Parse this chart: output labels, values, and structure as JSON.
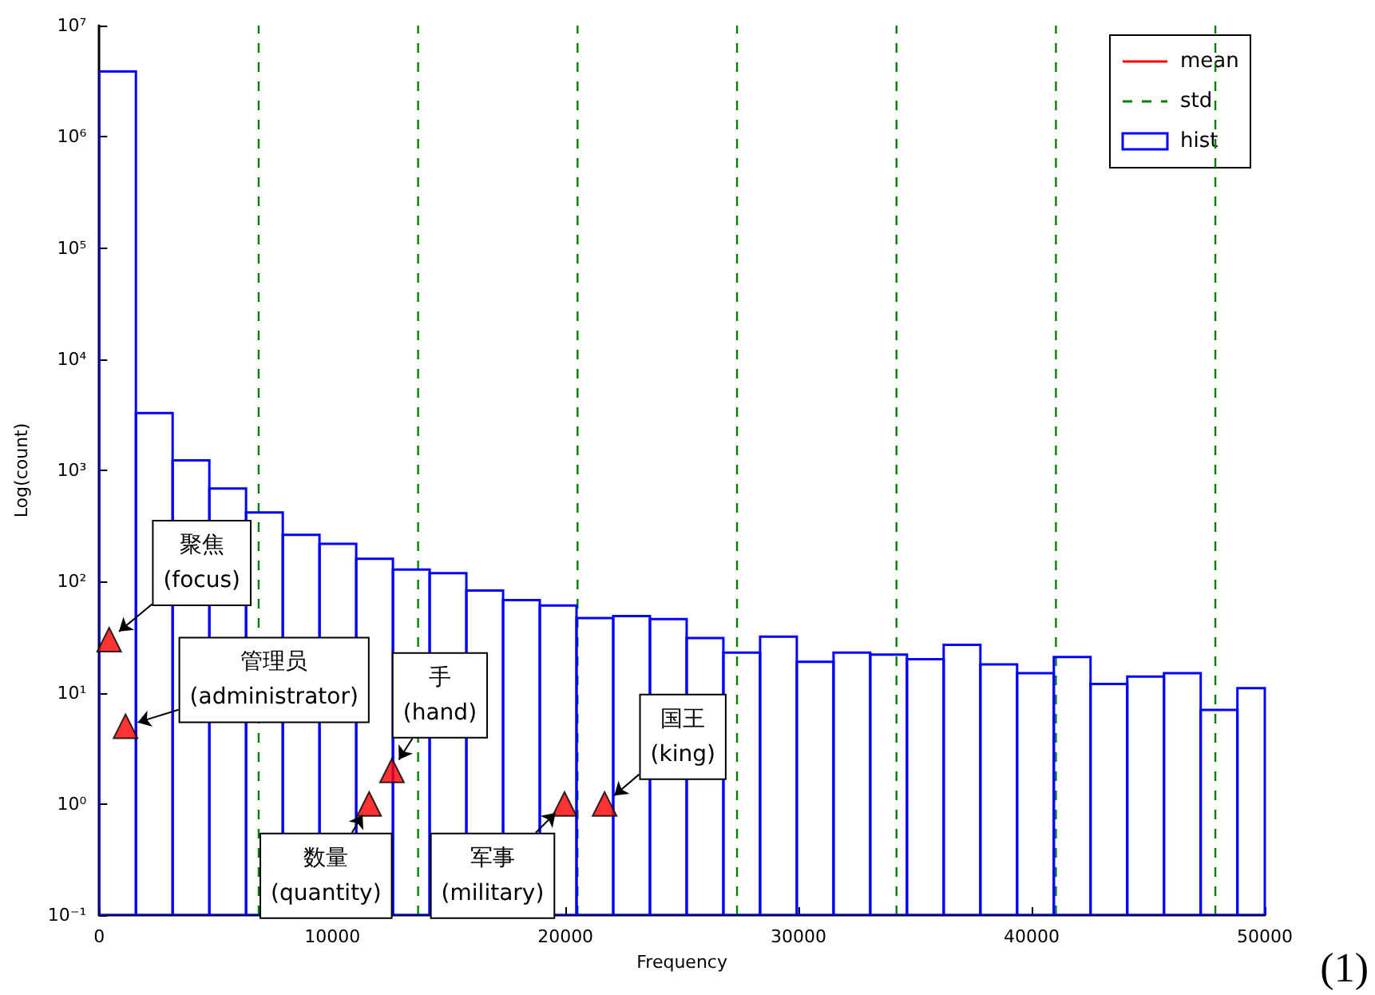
{
  "chart_data": {
    "type": "histogram",
    "xlabel": "Frequency",
    "ylabel": "Log(count)",
    "bins": [
      0,
      1575,
      3150,
      4725,
      6300,
      7875,
      9450,
      11025,
      12600,
      14175,
      15750,
      17325,
      18900,
      20475,
      22050,
      23625,
      25200,
      26775,
      28350,
      29925,
      31500,
      33075,
      34650,
      36225,
      37800,
      39375,
      40950,
      42525,
      44100,
      45675,
      47250,
      48825,
      50000
    ],
    "series": [
      {
        "name": "mean",
        "type": "line",
        "color": "#ff0000",
        "line_style": "solid",
        "values": [
          null
        ]
      },
      {
        "name": "std",
        "type": "line",
        "color": "#008000",
        "line_style": "dashed",
        "x": [
          6840,
          6840,
          null,
          13680,
          13680,
          null,
          20520,
          20520,
          null,
          27360,
          27360,
          null,
          34200,
          34200,
          null,
          41040,
          41040,
          null,
          47880,
          47880
        ],
        "values": [
          0.1,
          10000000,
          null,
          0.1,
          10000000,
          null,
          0.1,
          10000000,
          null,
          0.1,
          10000000,
          null,
          0.1,
          10000000,
          null,
          0.1,
          10000000,
          null,
          0.1,
          10000000
        ]
      },
      {
        "name": "hist",
        "color": "#0000ff",
        "values": [
          3860000,
          3280,
          1230,
          686,
          418,
          263,
          218,
          160,
          128,
          119,
          83,
          68,
          61,
          47,
          49,
          46,
          31,
          23,
          32,
          19,
          23,
          22,
          20,
          27,
          18,
          15,
          21,
          12,
          14,
          15,
          7,
          11
        ]
      },
      {
        "type": "scatter",
        "color": "#ff0000",
        "marker": "triangle",
        "x": [
          427,
          1130,
          12560,
          11580,
          19960,
          21680
        ],
        "values": [
          30,
          5,
          2,
          1,
          1,
          1
        ]
      }
    ],
    "annotations": [
      {
        "text": "聚焦\n(focus)",
        "x": 427,
        "y": 30
      },
      {
        "text": "管理员\n(administrator)",
        "x": 1130,
        "y": 5
      },
      {
        "text": "手\n(hand)",
        "x": 12560,
        "y": 2
      },
      {
        "text": "数量\n(quantity)",
        "x": 11580,
        "y": 1
      },
      {
        "text": "军事\n(military)",
        "x": 19960,
        "y": 1
      },
      {
        "text": "国王\n(king)",
        "x": 21680,
        "y": 1
      },
      "(1)"
    ],
    "xlim": [
      0,
      50000
    ],
    "xticks": [
      0,
      10000,
      20000,
      30000,
      40000,
      50000
    ],
    "ylim": [
      0.1,
      10000000
    ],
    "yticks": [
      {
        "value": 0.1,
        "label": "10⁻¹"
      },
      {
        "value": 1,
        "label": "10⁰"
      },
      {
        "value": 10,
        "label": "10¹"
      },
      {
        "value": 100,
        "label": "10²"
      },
      {
        "value": 1000,
        "label": "10³"
      },
      {
        "value": 10000,
        "label": "10⁴"
      },
      {
        "value": 100000,
        "label": "10⁵"
      },
      {
        "value": 1000000,
        "label": "10⁶"
      },
      {
        "value": 10000000,
        "label": "10⁷"
      }
    ],
    "log": "y",
    "grid": false,
    "legend": "top right"
  }
}
